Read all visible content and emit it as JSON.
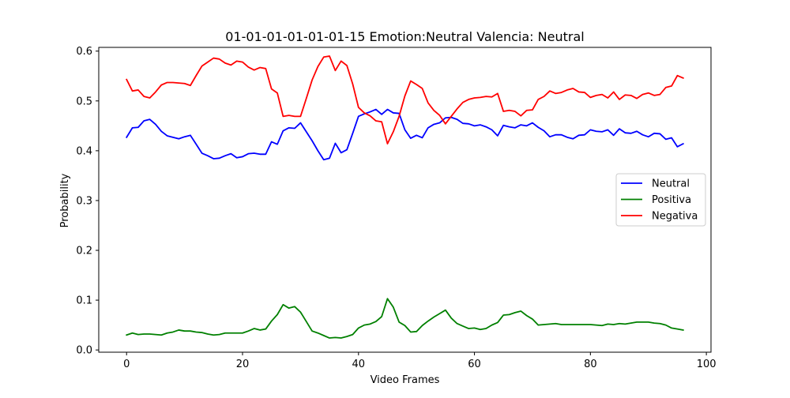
{
  "chart_data": {
    "type": "line",
    "title": "01-01-01-01-01-01-15 Emotion:Neutral Valencia: Neutral",
    "xlabel": "Video Frames",
    "ylabel": "Probability",
    "xlim": [
      -4.8,
      100.8
    ],
    "ylim": [
      -0.0045,
      0.6075
    ],
    "xticks": [
      0,
      20,
      40,
      60,
      80,
      100
    ],
    "yticks": [
      0.0,
      0.1,
      0.2,
      0.3,
      0.4,
      0.5,
      0.6
    ],
    "xtick_labels": [
      "0",
      "20",
      "40",
      "60",
      "80",
      "100"
    ],
    "ytick_labels": [
      "0.0",
      "0.1",
      "0.2",
      "0.3",
      "0.4",
      "0.5",
      "0.6"
    ],
    "grid": false,
    "legend_position": "center-right",
    "x": [
      0,
      1,
      2,
      3,
      4,
      5,
      6,
      7,
      8,
      9,
      10,
      11,
      12,
      13,
      14,
      15,
      16,
      17,
      18,
      19,
      20,
      21,
      22,
      23,
      24,
      25,
      26,
      27,
      28,
      29,
      30,
      31,
      32,
      33,
      34,
      35,
      36,
      37,
      38,
      39,
      40,
      41,
      42,
      43,
      44,
      45,
      46,
      47,
      48,
      49,
      50,
      51,
      52,
      53,
      54,
      55,
      56,
      57,
      58,
      59,
      60,
      61,
      62,
      63,
      64,
      65,
      66,
      67,
      68,
      69,
      70,
      71,
      72,
      73,
      74,
      75,
      76,
      77,
      78,
      79,
      80,
      81,
      82,
      83,
      84,
      85,
      86,
      87,
      88,
      89,
      90,
      91,
      92,
      93,
      94,
      95,
      96
    ],
    "series": [
      {
        "name": "Neutral",
        "color": "#0000ff",
        "values": [
          0.427,
          0.446,
          0.447,
          0.46,
          0.463,
          0.453,
          0.439,
          0.43,
          0.427,
          0.424,
          0.428,
          0.431,
          0.413,
          0.395,
          0.39,
          0.384,
          0.385,
          0.39,
          0.394,
          0.386,
          0.388,
          0.394,
          0.395,
          0.393,
          0.393,
          0.418,
          0.413,
          0.44,
          0.446,
          0.445,
          0.456,
          0.438,
          0.42,
          0.4,
          0.382,
          0.385,
          0.415,
          0.396,
          0.402,
          0.435,
          0.469,
          0.474,
          0.478,
          0.483,
          0.473,
          0.483,
          0.476,
          0.475,
          0.442,
          0.425,
          0.431,
          0.426,
          0.446,
          0.453,
          0.456,
          0.466,
          0.467,
          0.463,
          0.455,
          0.454,
          0.45,
          0.452,
          0.448,
          0.442,
          0.43,
          0.451,
          0.448,
          0.446,
          0.452,
          0.45,
          0.456,
          0.447,
          0.44,
          0.428,
          0.432,
          0.432,
          0.427,
          0.424,
          0.431,
          0.432,
          0.442,
          0.439,
          0.438,
          0.442,
          0.431,
          0.444,
          0.436,
          0.435,
          0.439,
          0.432,
          0.428,
          0.435,
          0.434,
          0.423,
          0.426,
          0.408,
          0.414
        ]
      },
      {
        "name": "Positiva",
        "color": "#008000",
        "values": [
          0.03,
          0.034,
          0.031,
          0.032,
          0.032,
          0.031,
          0.03,
          0.034,
          0.036,
          0.04,
          0.038,
          0.038,
          0.036,
          0.035,
          0.032,
          0.03,
          0.031,
          0.034,
          0.034,
          0.034,
          0.034,
          0.038,
          0.043,
          0.04,
          0.042,
          0.058,
          0.071,
          0.091,
          0.084,
          0.087,
          0.076,
          0.057,
          0.038,
          0.034,
          0.029,
          0.024,
          0.025,
          0.024,
          0.027,
          0.031,
          0.044,
          0.05,
          0.052,
          0.057,
          0.067,
          0.103,
          0.086,
          0.056,
          0.049,
          0.036,
          0.037,
          0.049,
          0.058,
          0.066,
          0.073,
          0.08,
          0.064,
          0.053,
          0.048,
          0.043,
          0.044,
          0.041,
          0.043,
          0.05,
          0.055,
          0.07,
          0.071,
          0.075,
          0.078,
          0.069,
          0.062,
          0.05,
          0.051,
          0.052,
          0.053,
          0.051,
          0.051,
          0.051,
          0.051,
          0.051,
          0.051,
          0.05,
          0.049,
          0.052,
          0.051,
          0.053,
          0.052,
          0.054,
          0.056,
          0.056,
          0.056,
          0.054,
          0.053,
          0.05,
          0.044,
          0.042,
          0.04
        ]
      },
      {
        "name": "Negativa",
        "color": "#ff0000",
        "values": [
          0.543,
          0.52,
          0.522,
          0.509,
          0.506,
          0.518,
          0.532,
          0.537,
          0.537,
          0.536,
          0.535,
          0.531,
          0.551,
          0.57,
          0.578,
          0.586,
          0.584,
          0.576,
          0.572,
          0.58,
          0.578,
          0.568,
          0.562,
          0.567,
          0.565,
          0.524,
          0.516,
          0.469,
          0.471,
          0.469,
          0.469,
          0.505,
          0.542,
          0.569,
          0.588,
          0.59,
          0.561,
          0.58,
          0.571,
          0.534,
          0.487,
          0.476,
          0.47,
          0.46,
          0.458,
          0.414,
          0.438,
          0.469,
          0.51,
          0.54,
          0.533,
          0.525,
          0.496,
          0.481,
          0.471,
          0.454,
          0.469,
          0.484,
          0.497,
          0.503,
          0.506,
          0.507,
          0.509,
          0.508,
          0.515,
          0.479,
          0.481,
          0.479,
          0.47,
          0.481,
          0.482,
          0.503,
          0.509,
          0.52,
          0.515,
          0.517,
          0.522,
          0.525,
          0.518,
          0.517,
          0.507,
          0.511,
          0.513,
          0.506,
          0.518,
          0.503,
          0.512,
          0.511,
          0.505,
          0.513,
          0.516,
          0.511,
          0.513,
          0.527,
          0.53,
          0.551,
          0.546
        ]
      }
    ]
  }
}
